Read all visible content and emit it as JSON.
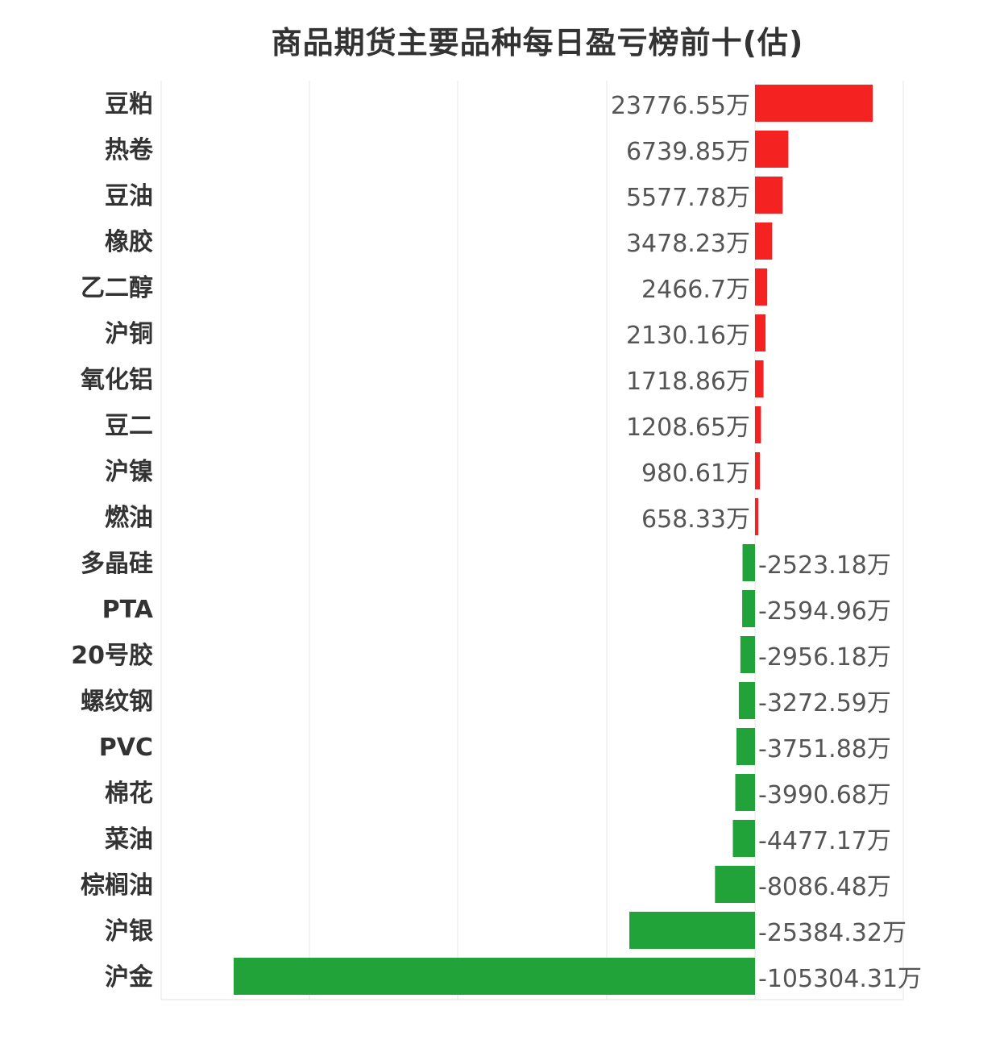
{
  "chart_data": {
    "type": "bar",
    "orientation": "horizontal",
    "title": "商品期货主要品种每日盈亏榜前十(估)",
    "unit_suffix": "万",
    "categories": [
      "豆粕",
      "热卷",
      "豆油",
      "橡胶",
      "乙二醇",
      "沪铜",
      "氧化铝",
      "豆二",
      "沪镍",
      "燃油",
      "多晶硅",
      "PTA",
      "20号胶",
      "螺纹钢",
      "PVC",
      "棉花",
      "菜油",
      "棕榈油",
      "沪银",
      "沪金"
    ],
    "values": [
      23776.55,
      6739.85,
      5577.78,
      3478.23,
      2466.7,
      2130.16,
      1718.86,
      1208.65,
      980.61,
      658.33,
      -2523.18,
      -2594.96,
      -2956.18,
      -3272.59,
      -3751.88,
      -3990.68,
      -4477.17,
      -8086.48,
      -25384.32,
      -105304.31
    ],
    "value_labels": [
      "23776.55万",
      "6739.85万",
      "5577.78万",
      "3478.23万",
      "2466.7万",
      "2130.16万",
      "1718.86万",
      "1208.65万",
      "980.61万",
      "658.33万",
      "-2523.18万",
      "-2594.96万",
      "-2956.18万",
      "-3272.59万",
      "-3751.88万",
      "-3990.68万",
      "-4477.17万",
      "-8086.48万",
      "-25384.32万",
      "-105304.31万"
    ],
    "xlim": [
      -120000,
      30000
    ],
    "grid": true,
    "colors": {
      "positive": "#f52222",
      "negative": "#21a33a"
    }
  }
}
